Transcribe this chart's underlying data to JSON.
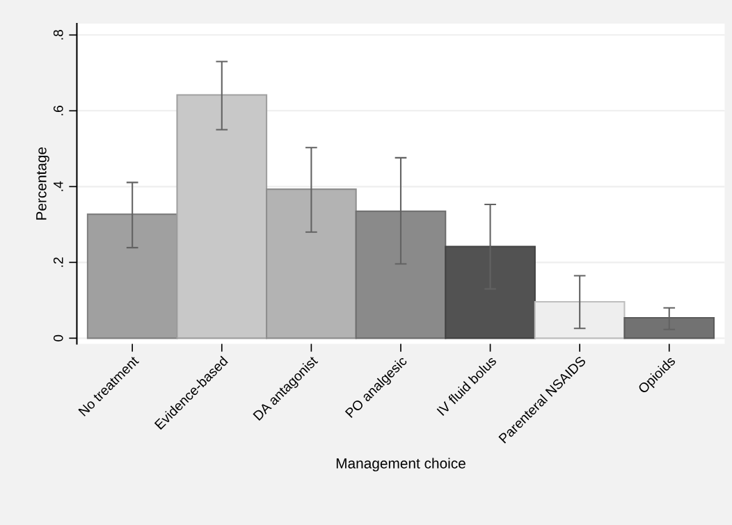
{
  "chart_data": {
    "type": "bar",
    "xlabel": "Management choice",
    "ylabel": "Percentage",
    "categories": [
      "No treatment",
      "Evidence-based",
      "DA antagonist",
      "PO analgesic",
      "IV fluid bolus",
      "Parenteral NSAIDS",
      "Opioids"
    ],
    "values": [
      0.327,
      0.642,
      0.393,
      0.335,
      0.242,
      0.096,
      0.054
    ],
    "colors": [
      "#a0a0a0",
      "#c8c8c8",
      "#b3b3b3",
      "#8a8a8a",
      "#525252",
      "#eeeeee",
      "#727272"
    ],
    "errors": [
      [
        0.239,
        0.411
      ],
      [
        0.55,
        0.73
      ],
      [
        0.28,
        0.503
      ],
      [
        0.196,
        0.476
      ],
      [
        0.13,
        0.353
      ],
      [
        0.026,
        0.165
      ],
      [
        0.023,
        0.08
      ]
    ],
    "ylim": [
      -0.015,
      0.83
    ],
    "yticks": [
      {
        "value": 0,
        "label": "0"
      },
      {
        "value": 0.2,
        "label": ".2"
      },
      {
        "value": 0.4,
        "label": ".4"
      },
      {
        "value": 0.6,
        "label": ".6"
      },
      {
        "value": 0.8,
        "label": ".8"
      }
    ],
    "grid": "y",
    "legend": false
  }
}
